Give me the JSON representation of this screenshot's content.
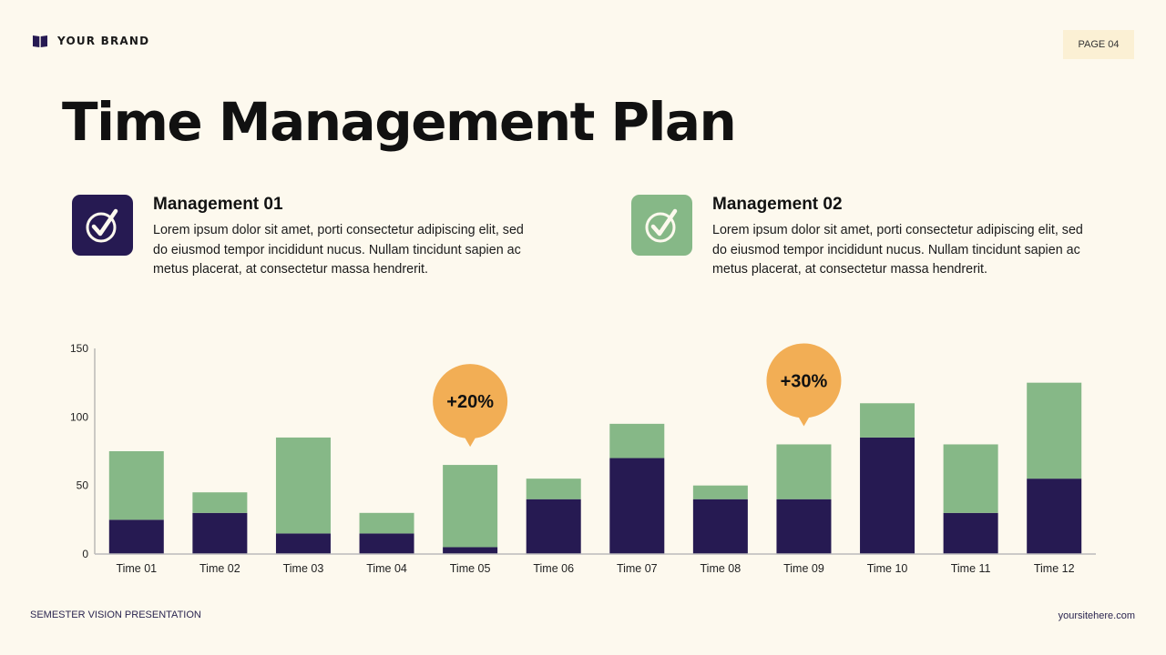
{
  "header": {
    "brand": "YOUR BRAND",
    "brand_icon": "book-icon",
    "page_label": "PAGE 04"
  },
  "title": "Time Management Plan",
  "cards": [
    {
      "title": "Management 01",
      "text": "Lorem ipsum dolor sit amet, porti consectetur adipiscing elit, sed do eiusmod tempor incididunt nucus. Nullam tincidunt sapien ac metus placerat, at consectetur massa hendrerit.",
      "icon": "check-circle-icon",
      "color": "#261a52"
    },
    {
      "title": "Management 02",
      "text": "Lorem ipsum dolor sit amet, porti consectetur adipiscing elit, sed do eiusmod tempor incididunt nucus. Nullam tincidunt sapien ac metus placerat, at consectetur massa hendrerit.",
      "icon": "check-circle-icon",
      "color": "#86b887"
    }
  ],
  "chart_data": {
    "type": "bar",
    "stacked": true,
    "categories": [
      "Time 01",
      "Time 02",
      "Time 03",
      "Time 04",
      "Time 05",
      "Time 06",
      "Time 07",
      "Time 08",
      "Time 09",
      "Time 10",
      "Time 11",
      "Time 12"
    ],
    "series": [
      {
        "values": [
          25,
          30,
          15,
          15,
          5,
          40,
          70,
          40,
          40,
          85,
          30,
          55
        ],
        "color": "#261a52"
      },
      {
        "values": [
          50,
          15,
          70,
          15,
          60,
          15,
          25,
          10,
          40,
          25,
          50,
          70
        ],
        "color": "#86b887"
      }
    ],
    "ylim": [
      0,
      150
    ],
    "yticks": [
      0,
      50,
      100,
      150
    ],
    "grid": false,
    "annotations": [
      {
        "category": "Time 05",
        "text": "+20%",
        "color": "#f2ae55"
      },
      {
        "category": "Time 09",
        "text": "+30%",
        "color": "#f2ae55"
      }
    ]
  },
  "footer": {
    "left": "SEMESTER VISION PRESENTATION",
    "right": "yoursitehere.com"
  }
}
